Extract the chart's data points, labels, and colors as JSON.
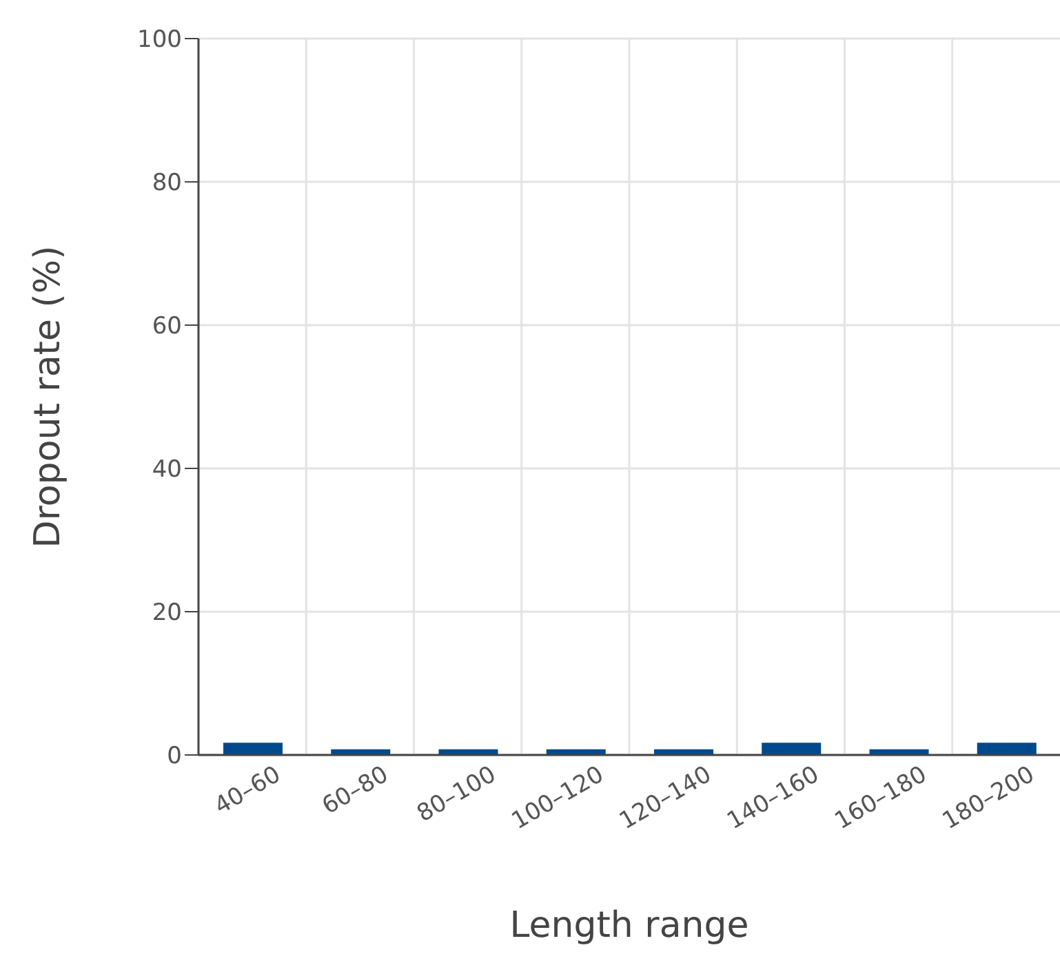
{
  "chart_data": {
    "type": "bar",
    "xlabel": "Length range",
    "ylabel": "Dropout rate (%)",
    "categories": [
      "40–60",
      "60–80",
      "80–100",
      "100–120",
      "120–140",
      "140–160",
      "160–180",
      "180–200"
    ],
    "values": [
      1.7,
      0.8,
      0.8,
      0.8,
      0.8,
      1.7,
      0.8,
      1.7
    ],
    "color": "#004a8c",
    "ylim": [
      0,
      100
    ],
    "yticks": [
      0,
      20,
      40,
      60,
      80,
      100
    ],
    "grid": true
  }
}
